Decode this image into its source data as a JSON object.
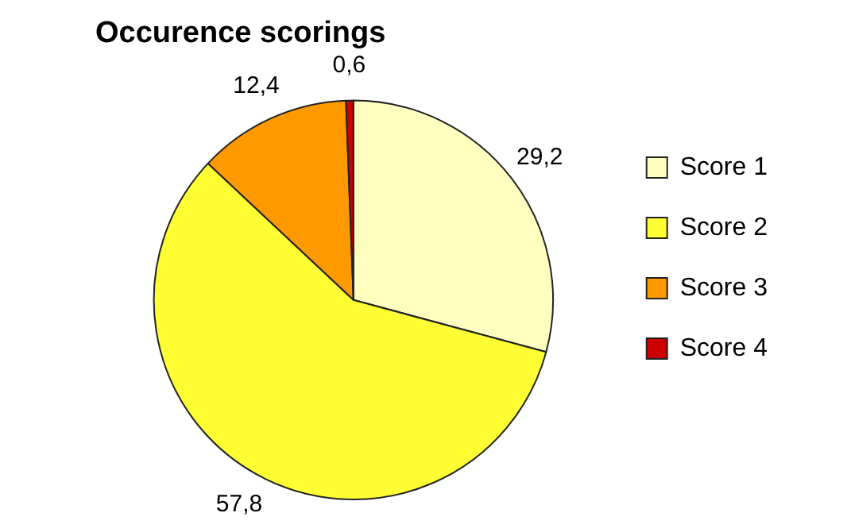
{
  "chart_data": {
    "type": "pie",
    "title": "Occurence scorings",
    "categories": [
      "Score 1",
      "Score 2",
      "Score 3",
      "Score 4"
    ],
    "values": [
      29.2,
      57.8,
      12.4,
      0.6
    ],
    "value_labels": [
      "29,2",
      "57,8",
      "12,4",
      "0,6"
    ],
    "colors": [
      "#ffffc0",
      "#ffff33",
      "#ff9900",
      "#cc0000"
    ],
    "legend": "right"
  }
}
